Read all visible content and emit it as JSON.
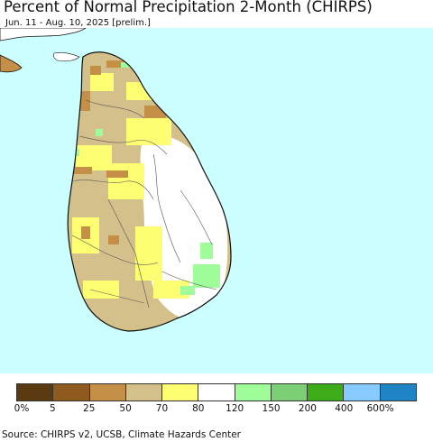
{
  "title": "Percent of Normal Precipitation 2-Month (CHIRPS)",
  "subtitle": "Jun. 11 - Aug. 10, 2025 [prelim.]",
  "source": "Source: CHIRPS v2, UCSB, Climate Hazards Center",
  "colors": {
    "ocean": "#ccffff",
    "land_default": "#ffffff",
    "border": "#555555",
    "coast": "#111111"
  },
  "legend": {
    "swatches": [
      "#5a3a10",
      "#8f5a1e",
      "#c48f46",
      "#d4c08a",
      "#fefe73",
      "#ffffff",
      "#9ffe9a",
      "#7ccf75",
      "#3cac18",
      "#86caff",
      "#1f84c4"
    ],
    "labels": [
      "0%",
      "5",
      "25",
      "50",
      "70",
      "80",
      "120",
      "150",
      "200",
      "400",
      "600%"
    ]
  }
}
